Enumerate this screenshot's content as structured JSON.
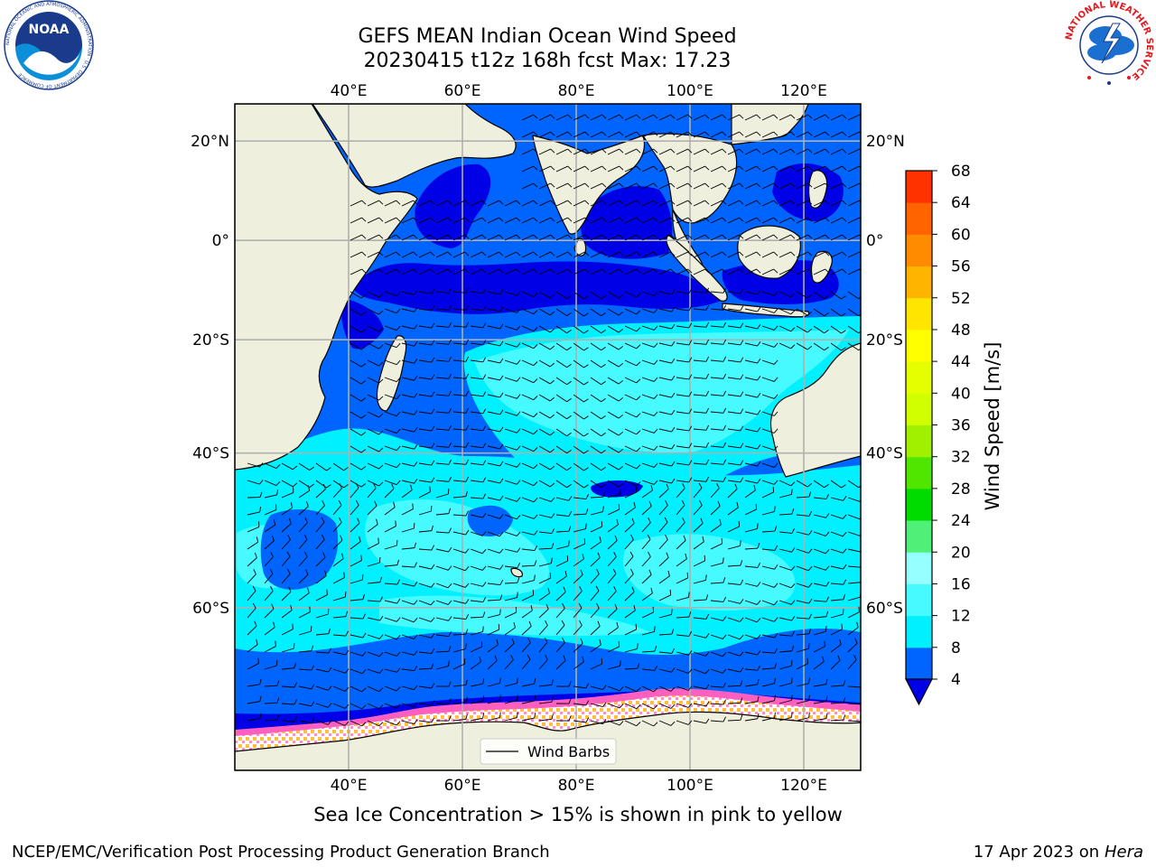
{
  "header": {
    "title": "GEFS MEAN Indian Ocean Wind Speed",
    "subtitle": "20230415 t12z 168h fcst   Max: 17.23"
  },
  "map": {
    "lon_range": [
      20,
      130
    ],
    "lat_range": [
      -73,
      27
    ],
    "lon_ticks": [
      "40°E",
      "60°E",
      "80°E",
      "100°E",
      "120°E"
    ],
    "lon_tick_values": [
      40,
      60,
      80,
      100,
      120
    ],
    "lat_ticks": [
      "20°N",
      "0°",
      "20°S",
      "40°S",
      "60°S"
    ],
    "lat_tick_values": [
      20,
      0,
      -20,
      -40,
      -60
    ],
    "grid": true,
    "legend_label": "Wind Barbs",
    "legend_position": "bottom-center",
    "land_color": "#efefdd",
    "ocean_colors": {
      "4-8": "#0064ff",
      "8-12": "#00f0ff",
      "12-16": "#46faff",
      "below-4": "#0000e6"
    }
  },
  "colorbar": {
    "label": "Wind Speed [m/s]",
    "ticks": [
      "4",
      "8",
      "12",
      "16",
      "20",
      "24",
      "28",
      "32",
      "36",
      "40",
      "44",
      "48",
      "52",
      "56",
      "60",
      "64",
      "68"
    ],
    "colors": [
      "#0064ff",
      "#00f0ff",
      "#46faff",
      "#96ffff",
      "#50f078",
      "#00dc00",
      "#50e600",
      "#a0f000",
      "#d2ff00",
      "#e6ff00",
      "#ffff00",
      "#ffe600",
      "#ffb400",
      "#ff8c00",
      "#ff6400",
      "#ff3200",
      "#ff0000"
    ],
    "under_color": "#0000e6"
  },
  "footer": {
    "note": "Sea Ice Concentration > 15% is shown in pink to yellow",
    "branch": "NCEP/EMC/Verification Post Processing Product Generation Branch",
    "date": "17 Apr 2023 on ",
    "host": "Hera"
  },
  "logos": {
    "noaa_text": "NOAA",
    "noaa_ring": "NATIONAL OCEANIC AND ATMOSPHERIC ADMINISTRATION · U.S. DEPARTMENT OF COMMERCE",
    "nws_ring": "NATIONAL WEATHER SERVICE"
  }
}
